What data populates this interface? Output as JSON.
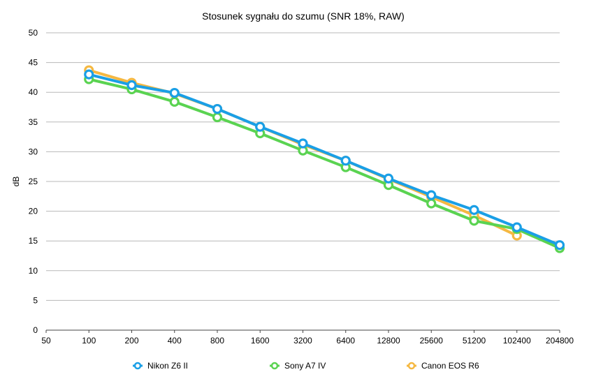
{
  "chart_data": {
    "type": "line",
    "title": "Stosunek sygnału do szumu (SNR 18%, RAW)",
    "xlabel": "",
    "ylabel": "dB",
    "categories": [
      "50",
      "100",
      "200",
      "400",
      "800",
      "1600",
      "3200",
      "6400",
      "12800",
      "25600",
      "51200",
      "102400",
      "204800"
    ],
    "ylim": [
      0,
      50
    ],
    "yticks": [
      0,
      5,
      10,
      15,
      20,
      25,
      30,
      35,
      40,
      45,
      50
    ],
    "grid": true,
    "legend_position": "bottom",
    "series": [
      {
        "name": "Canon EOS R6",
        "color": "#F5B841",
        "values": [
          null,
          43.7,
          41.6,
          39.8,
          37.2,
          34.2,
          31.2,
          28.5,
          25.4,
          22.4,
          19.3,
          15.9,
          null
        ]
      },
      {
        "name": "Sony A7 IV",
        "color": "#5AD351",
        "values": [
          null,
          42.2,
          40.5,
          38.4,
          35.8,
          33.1,
          30.2,
          27.4,
          24.4,
          21.3,
          18.4,
          17.0,
          13.8
        ]
      },
      {
        "name": "Nikon Z6 II",
        "color": "#1A9FE6",
        "values": [
          null,
          43.0,
          41.2,
          39.9,
          37.2,
          34.2,
          31.4,
          28.5,
          25.5,
          22.7,
          20.2,
          17.3,
          14.3
        ]
      }
    ],
    "legend": [
      {
        "name": "Nikon Z6 II",
        "color": "#1A9FE6"
      },
      {
        "name": "Sony A7 IV",
        "color": "#5AD351"
      },
      {
        "name": "Canon EOS R6",
        "color": "#F5B841"
      }
    ]
  }
}
